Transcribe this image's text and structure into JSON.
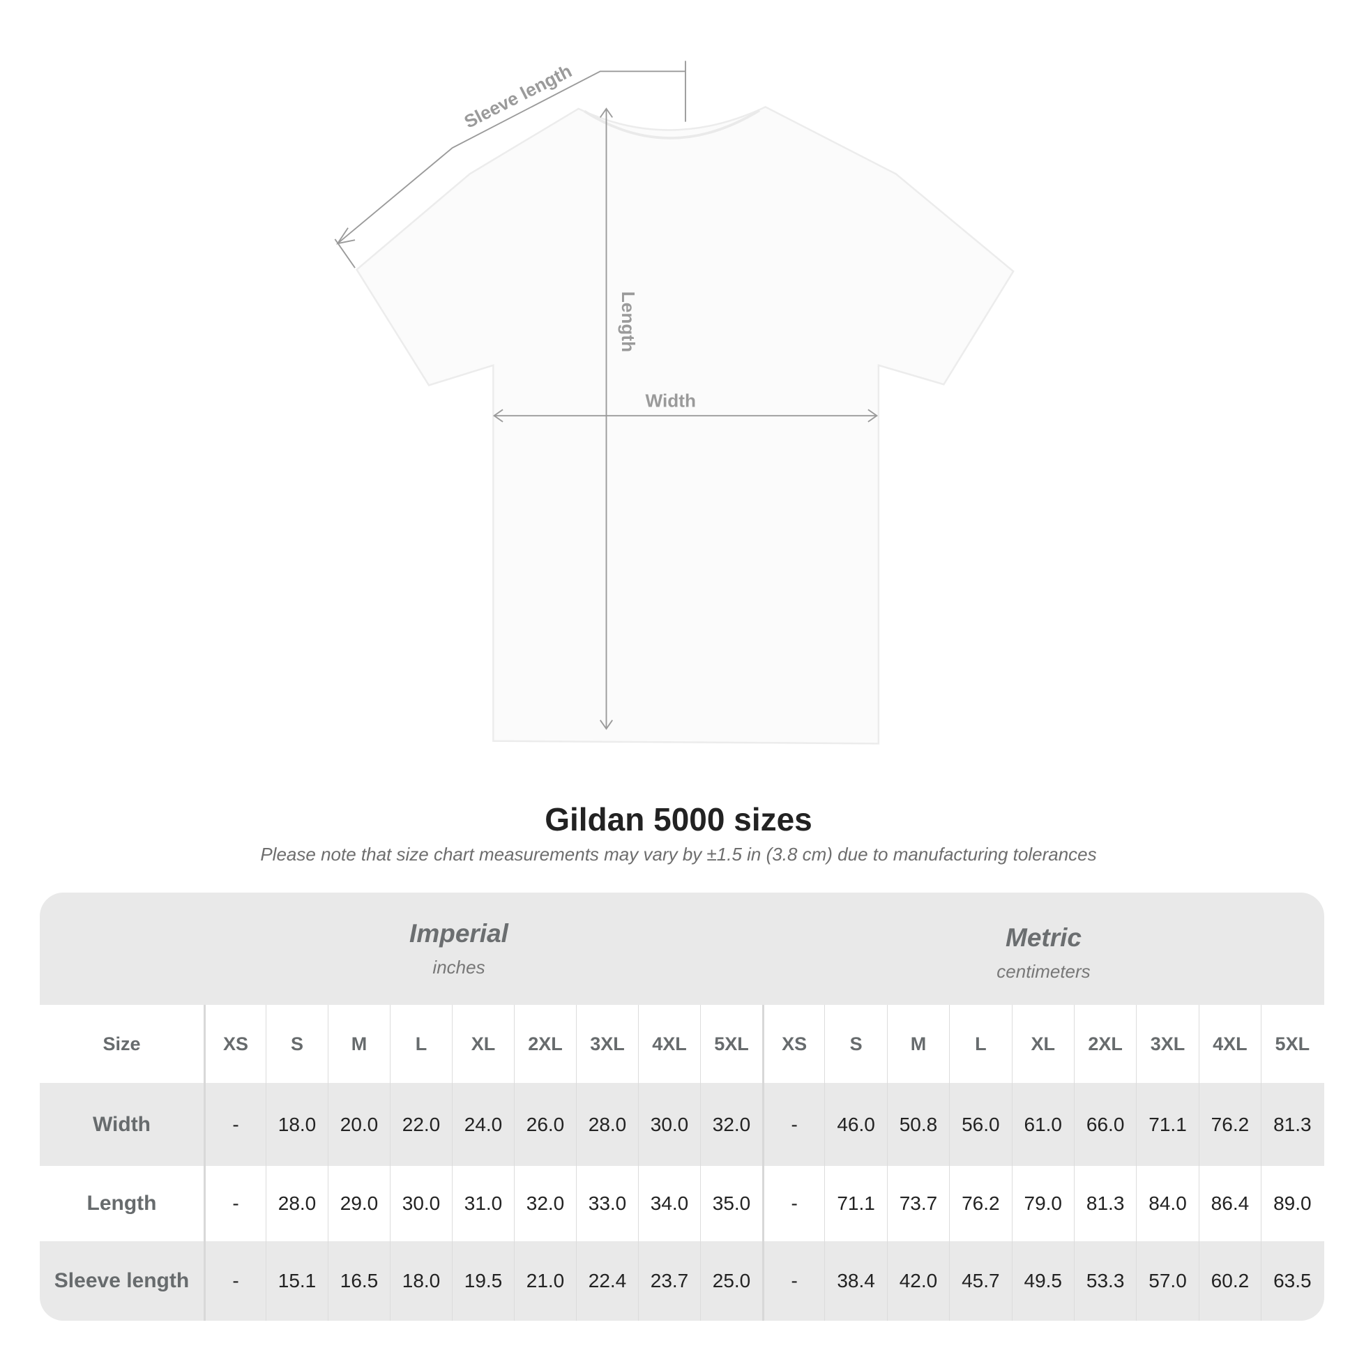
{
  "diagram": {
    "garment": "t-shirt",
    "labels": {
      "sleeve": "Sleeve length",
      "length": "Length",
      "width": "Width"
    },
    "line_color": "#9a9a9a"
  },
  "title": "Gildan 5000 sizes",
  "note": "Please note that size chart measurements may vary by ±1.5 in (3.8 cm) due to manufacturing tolerances",
  "table": {
    "header_bg": "#e9e9e9",
    "imperial": {
      "title": "Imperial",
      "unit": "inches"
    },
    "metric": {
      "title": "Metric",
      "unit": "centimeters"
    },
    "size_label": "Size",
    "sizes": [
      "XS",
      "S",
      "M",
      "L",
      "XL",
      "2XL",
      "3XL",
      "4XL",
      "5XL"
    ],
    "rows": [
      {
        "label": "Width",
        "imperial": [
          "-",
          "18.0",
          "20.0",
          "22.0",
          "24.0",
          "26.0",
          "28.0",
          "30.0",
          "32.0"
        ],
        "metric": [
          "-",
          "46.0",
          "50.8",
          "56.0",
          "61.0",
          "66.0",
          "71.1",
          "76.2",
          "81.3"
        ]
      },
      {
        "label": "Length",
        "imperial": [
          "-",
          "28.0",
          "29.0",
          "30.0",
          "31.0",
          "32.0",
          "33.0",
          "34.0",
          "35.0"
        ],
        "metric": [
          "-",
          "71.1",
          "73.7",
          "76.2",
          "79.0",
          "81.3",
          "84.0",
          "86.4",
          "89.0"
        ]
      },
      {
        "label": "Sleeve length",
        "imperial": [
          "-",
          "15.1",
          "16.5",
          "18.0",
          "19.5",
          "21.0",
          "22.4",
          "23.7",
          "25.0"
        ],
        "metric": [
          "-",
          "38.4",
          "42.0",
          "45.7",
          "49.5",
          "53.3",
          "57.0",
          "60.2",
          "63.5"
        ]
      }
    ]
  }
}
